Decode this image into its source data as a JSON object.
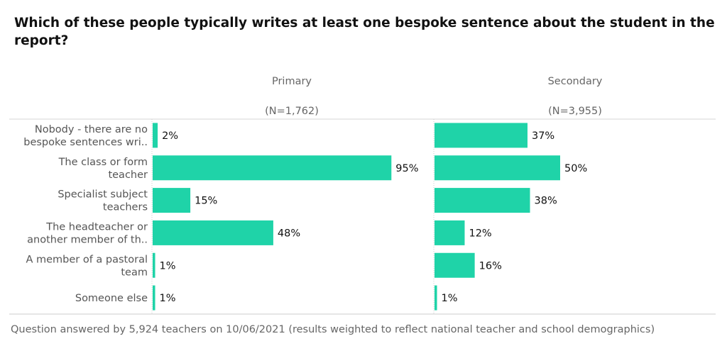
{
  "chart_data": {
    "type": "bar",
    "title": "Which of these people typically writes at least one bespoke sentence about the student in the report?",
    "categories": [
      [
        "Nobody - there are no",
        "bespoke sentences wri.."
      ],
      [
        "The class or form",
        "teacher"
      ],
      [
        "Specialist subject",
        "teachers"
      ],
      [
        "The headteacher or",
        "another member of th.."
      ],
      [
        "A member of a pastoral",
        "team"
      ],
      [
        "Someone else"
      ]
    ],
    "panels": [
      {
        "name": "Primary",
        "n_label": "(N=1,762)",
        "values": [
          2,
          95,
          15,
          48,
          1,
          1
        ]
      },
      {
        "name": "Secondary",
        "n_label": "(N=3,955)",
        "values": [
          37,
          50,
          38,
          12,
          16,
          1
        ]
      }
    ],
    "value_suffix": "%",
    "xlim": [
      0,
      110
    ],
    "bar_color": "#1fd3a8",
    "footer": "Question answered by 5,924 teachers on 10/06/2021 (results weighted to reflect national teacher and school demographics)"
  }
}
